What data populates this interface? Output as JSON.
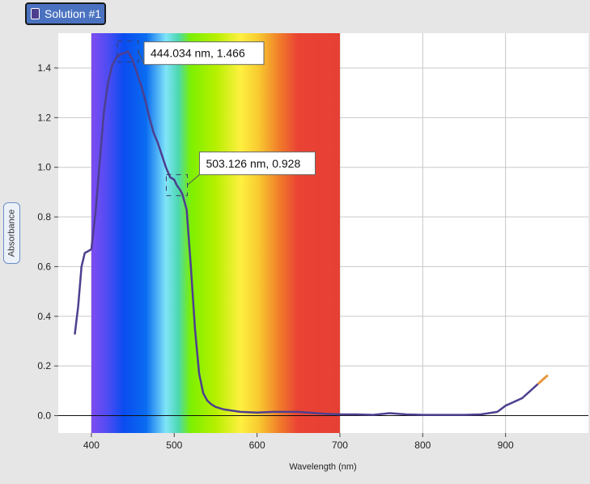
{
  "legend": {
    "label": "Solution #1",
    "color": "#4d3f8f"
  },
  "chart_data": {
    "type": "line",
    "xlabel": "Wavelength (nm)",
    "ylabel": "Absorbance",
    "xlim": [
      360,
      1000
    ],
    "ylim": [
      -0.07,
      1.54
    ],
    "x_ticks": [
      "400",
      "500",
      "600",
      "700",
      "800",
      "900"
    ],
    "y_ticks": [
      "0.0",
      "0.2",
      "0.4",
      "0.6",
      "0.8",
      "1.0",
      "1.2",
      "1.4"
    ],
    "grid": true,
    "visible_spectrum_band": [
      400,
      700
    ],
    "series": [
      {
        "name": "Solution #1",
        "color": "#4d3f8f",
        "end_color": "#e69a3c",
        "x": [
          380,
          384,
          388,
          392,
          395,
          400,
          405,
          410,
          415,
          420,
          425,
          430,
          435,
          440,
          444,
          450,
          455,
          460,
          465,
          470,
          475,
          480,
          485,
          490,
          495,
          500,
          503,
          507,
          510,
          515,
          520,
          525,
          530,
          535,
          540,
          545,
          550,
          560,
          570,
          580,
          600,
          620,
          650,
          680,
          700,
          720,
          740,
          760,
          780,
          800,
          820,
          850,
          870,
          890,
          900,
          910,
          920,
          930,
          940,
          950
        ],
        "y": [
          0.33,
          0.44,
          0.6,
          0.655,
          0.66,
          0.67,
          0.82,
          1.02,
          1.22,
          1.34,
          1.41,
          1.44,
          1.455,
          1.46,
          1.466,
          1.43,
          1.38,
          1.33,
          1.27,
          1.2,
          1.14,
          1.1,
          1.05,
          1.0,
          0.96,
          0.95,
          0.928,
          0.91,
          0.89,
          0.83,
          0.6,
          0.35,
          0.17,
          0.09,
          0.06,
          0.045,
          0.035,
          0.025,
          0.02,
          0.015,
          0.012,
          0.015,
          0.015,
          0.008,
          0.005,
          0.005,
          0.003,
          0.01,
          0.005,
          0.003,
          0.003,
          0.003,
          0.005,
          0.015,
          0.04,
          0.055,
          0.07,
          0.1,
          0.13,
          0.16
        ]
      }
    ],
    "annotations": [
      {
        "text": "444.034 nm, 1.466",
        "x": 444.034,
        "y": 1.466
      },
      {
        "text": "503.126 nm, 0.928",
        "x": 503.126,
        "y": 0.928
      }
    ]
  }
}
